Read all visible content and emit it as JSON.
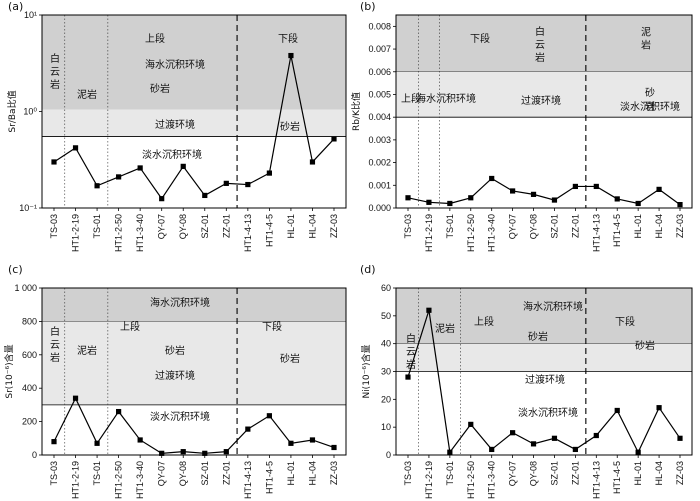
{
  "chart_data": [
    {
      "panel_label": "(a)",
      "type": "line",
      "ylabel": "Sr/Ba比值",
      "y_scale": "log",
      "y_ticks": [
        "10⁻¹",
        "10⁰",
        "10¹"
      ],
      "ylim": [
        0.1,
        10
      ],
      "categories": [
        "TS-03",
        "HT1-2-19",
        "TS-01",
        "HT1-2-50",
        "HT1-3-40",
        "QY-07",
        "QY-08",
        "SZ-01",
        "ZZ-01",
        "HT1-4-13",
        "HT1-4-5",
        "HL-01",
        "HL-04",
        "ZZ-03"
      ],
      "values": [
        0.3,
        0.42,
        0.17,
        0.21,
        0.26,
        0.125,
        0.27,
        0.135,
        0.18,
        0.175,
        0.23,
        3.8,
        0.3,
        0.52
      ],
      "bands": [
        {
          "range": [
            0.55,
            10
          ],
          "fill": "#d0d0d0"
        },
        {
          "range": [
            0.55,
            1.05
          ],
          "fill": "#e8e8e8",
          "label": "过渡环境"
        }
      ],
      "annotations": [
        {
          "text": "白云岩",
          "vertical": true
        },
        {
          "text": "泥岩"
        },
        {
          "text": "上段"
        },
        {
          "text": "海水沉积环境"
        },
        {
          "text": "砂岩"
        },
        {
          "text": "下段"
        },
        {
          "text": "砂岩"
        },
        {
          "text": "淡水沉积环境"
        }
      ]
    },
    {
      "panel_label": "(b)",
      "type": "line",
      "ylabel": "Rb/K比值",
      "y_ticks": [
        "0.000",
        "0.001",
        "0.002",
        "0.003",
        "0.004",
        "0.005",
        "0.006",
        "0.007",
        "0.008"
      ],
      "ylim": [
        0,
        0.0085
      ],
      "categories": [
        "TS-03",
        "HT1-2-19",
        "TS-01",
        "HT1-2-50",
        "HT1-3-40",
        "QY-07",
        "QY-08",
        "SZ-01",
        "ZZ-01",
        "HT1-4-13",
        "HT1-4-5",
        "HL-01",
        "HL-04",
        "ZZ-03"
      ],
      "values": [
        0.00045,
        0.00025,
        0.0002,
        0.00045,
        0.0013,
        0.00075,
        0.0006,
        0.00035,
        0.00095,
        0.00095,
        0.0004,
        0.0002,
        0.00082,
        0.00015
      ],
      "bands": [
        {
          "range": [
            0.006,
            0.0085
          ],
          "fill": "#d0d0d0"
        },
        {
          "range": [
            0.004,
            0.006
          ],
          "fill": "#e8e8e8",
          "label": "过渡环境"
        }
      ],
      "annotations": [
        {
          "text": "上段"
        },
        {
          "text": "海水沉积环境"
        },
        {
          "text": "下段"
        },
        {
          "text": "白云岩",
          "vertical": true
        },
        {
          "text": "泥岩",
          "vertical": true
        },
        {
          "text": "砂",
          "second": "岩"
        },
        {
          "text": "淡水沉积环境"
        }
      ]
    },
    {
      "panel_label": "(c)",
      "type": "line",
      "ylabel": "Sr(10⁻⁶)含量",
      "y_ticks": [
        "0",
        "200",
        "400",
        "600",
        "800",
        "1 000"
      ],
      "ylim": [
        0,
        1000
      ],
      "categories": [
        "TS-03",
        "HT1-2-19",
        "TS-01",
        "HT1-2-50",
        "HT1-3-40",
        "QY-07",
        "QY-08",
        "SZ-01",
        "ZZ-01",
        "HT1-4-13",
        "HT1-4-5",
        "HL-01",
        "HL-04",
        "ZZ-03"
      ],
      "values": [
        80,
        340,
        70,
        260,
        90,
        10,
        20,
        10,
        20,
        155,
        235,
        70,
        90,
        45
      ],
      "bands": [
        {
          "range": [
            800,
            1000
          ],
          "fill": "#d0d0d0",
          "label": "海水沉积环境"
        },
        {
          "range": [
            300,
            800
          ],
          "fill": "#e8e8e8"
        }
      ],
      "annotations": [
        {
          "text": "白云岩",
          "vertical": true
        },
        {
          "text": "泥岩"
        },
        {
          "text": "上段"
        },
        {
          "text": "砂岩"
        },
        {
          "text": "过渡环境"
        },
        {
          "text": "下段"
        },
        {
          "text": "砂岩"
        },
        {
          "text": "淡水沉积环境"
        }
      ]
    },
    {
      "panel_label": "(d)",
      "type": "line",
      "ylabel": "Ni(10⁻⁶)含量",
      "y_ticks": [
        "0",
        "10",
        "20",
        "30",
        "40",
        "50",
        "60"
      ],
      "ylim": [
        0,
        60
      ],
      "categories": [
        "TS-03",
        "HT1-2-19",
        "TS-01",
        "HT1-2-50",
        "HT1-3-40",
        "QY-07",
        "QY-08",
        "SZ-01",
        "ZZ-01",
        "HT1-4-13",
        "HT1-4-5",
        "HL-01",
        "HL-04",
        "ZZ-03"
      ],
      "values": [
        28,
        52,
        1,
        11,
        2,
        8,
        4,
        6,
        2,
        7,
        16,
        1,
        17,
        6
      ],
      "bands": [
        {
          "range": [
            40,
            60
          ],
          "fill": "#d0d0d0"
        },
        {
          "range": [
            30,
            40
          ],
          "fill": "#e8e8e8",
          "label": "过渡环境"
        }
      ],
      "annotations": [
        {
          "text": "白云岩",
          "vertical": true
        },
        {
          "text": "泥岩"
        },
        {
          "text": "上段"
        },
        {
          "text": "海水沉积环境"
        },
        {
          "text": "砂岩"
        },
        {
          "text": "下段"
        },
        {
          "text": "砂岩"
        },
        {
          "text": "淡水沉积环境"
        }
      ]
    }
  ],
  "style": {
    "line_color": "#000000",
    "marker": "square",
    "band_dark": "#d0d0d0",
    "band_light": "#e8e8e8"
  }
}
